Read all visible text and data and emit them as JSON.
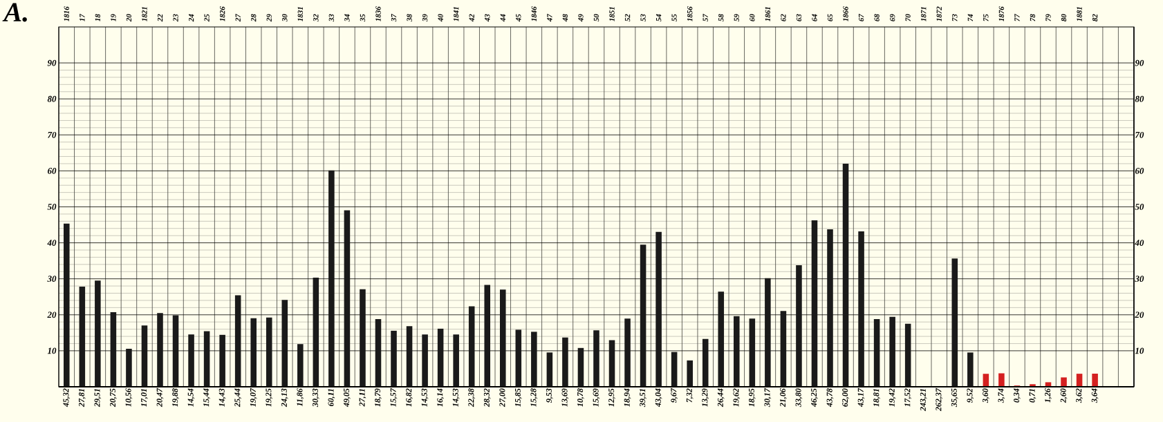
{
  "chart_data": {
    "type": "bar",
    "title": "A.",
    "categories": [
      "1816",
      "17",
      "18",
      "19",
      "20",
      "1821",
      "22",
      "23",
      "24",
      "25",
      "1826",
      "27",
      "28",
      "29",
      "30",
      "1831",
      "32",
      "33",
      "34",
      "35",
      "1836",
      "37",
      "38",
      "39",
      "40",
      "1841",
      "42",
      "43",
      "44",
      "45",
      "1846",
      "47",
      "48",
      "49",
      "50",
      "1851",
      "52",
      "53",
      "54",
      "55",
      "1856",
      "57",
      "58",
      "59",
      "60",
      "1861",
      "62",
      "63",
      "64",
      "65",
      "1866",
      "67",
      "68",
      "69",
      "70",
      "1871",
      "1872",
      "73",
      "74",
      "75",
      "1876",
      "77",
      "78",
      "79",
      "80",
      "1881",
      "82"
    ],
    "values": [
      45.32,
      27.81,
      29.51,
      20.75,
      10.56,
      17.01,
      20.47,
      19.88,
      14.54,
      15.44,
      14.43,
      25.44,
      19.07,
      19.25,
      24.13,
      11.86,
      30.33,
      60.11,
      49.05,
      27.11,
      18.79,
      15.57,
      16.82,
      14.53,
      16.14,
      14.53,
      22.38,
      28.32,
      27.0,
      15.85,
      15.28,
      9.53,
      13.69,
      10.78,
      15.69,
      12.95,
      18.94,
      39.51,
      43.04,
      9.67,
      7.32,
      13.29,
      26.44,
      19.62,
      18.95,
      30.17,
      21.06,
      33.8,
      46.25,
      43.78,
      62.0,
      43.17,
      18.81,
      19.42,
      17.52,
      null,
      null,
      35.65,
      9.52,
      3.6,
      3.74,
      0.34,
      0.71,
      1.26,
      2.6,
      3.62,
      3.64
    ],
    "value_labels": [
      "45,32",
      "27,81",
      "29,51",
      "20,75",
      "10,56",
      "17,01",
      "20,47",
      "19,88",
      "14,54",
      "15,44",
      "14,43",
      "25,44",
      "19,07",
      "19,25",
      "24,13",
      "11,86",
      "30,33",
      "60,11",
      "49,05",
      "27,11",
      "18,79",
      "15,57",
      "16,82",
      "14,53",
      "16,14",
      "14,53",
      "22,38",
      "28,32",
      "27,00",
      "15,85",
      "15,28",
      "9,53",
      "13,69",
      "10,78",
      "15,69",
      "12,95",
      "18,94",
      "39,51",
      "43,04",
      "9,67",
      "7,32",
      "13,29",
      "26,44",
      "19,62",
      "18,95",
      "30,17",
      "21,06",
      "33,80",
      "46,25",
      "43,78",
      "62,00",
      "43,17",
      "18,81",
      "19,42",
      "17,52",
      "243,21",
      "262,37",
      "35,65",
      "9,52",
      "3,60",
      "3,74",
      "0,34",
      "0,71",
      "1,26",
      "2,60",
      "3,62",
      "3,64"
    ],
    "colors": [
      "#1a1a1a",
      "#1a1a1a",
      "#1a1a1a",
      "#1a1a1a",
      "#1a1a1a",
      "#1a1a1a",
      "#1a1a1a",
      "#1a1a1a",
      "#1a1a1a",
      "#1a1a1a",
      "#1a1a1a",
      "#1a1a1a",
      "#1a1a1a",
      "#1a1a1a",
      "#1a1a1a",
      "#1a1a1a",
      "#1a1a1a",
      "#1a1a1a",
      "#1a1a1a",
      "#1a1a1a",
      "#1a1a1a",
      "#1a1a1a",
      "#1a1a1a",
      "#1a1a1a",
      "#1a1a1a",
      "#1a1a1a",
      "#1a1a1a",
      "#1a1a1a",
      "#1a1a1a",
      "#1a1a1a",
      "#1a1a1a",
      "#1a1a1a",
      "#1a1a1a",
      "#1a1a1a",
      "#1a1a1a",
      "#1a1a1a",
      "#1a1a1a",
      "#1a1a1a",
      "#1a1a1a",
      "#1a1a1a",
      "#1a1a1a",
      "#1a1a1a",
      "#1a1a1a",
      "#1a1a1a",
      "#1a1a1a",
      "#1a1a1a",
      "#1a1a1a",
      "#1a1a1a",
      "#1a1a1a",
      "#1a1a1a",
      "#1a1a1a",
      "#1a1a1a",
      "#1a1a1a",
      "#1a1a1a",
      "#1a1a1a",
      "#1a1a1a",
      "#1a1a1a",
      "#1a1a1a",
      "#1a1a1a",
      "#d42020",
      "#d42020",
      "#d42020",
      "#d42020",
      "#d42020",
      "#d42020",
      "#d42020",
      "#d42020"
    ],
    "ylim": [
      0,
      100
    ],
    "yticks": [
      10,
      20,
      30,
      40,
      50,
      60,
      70,
      80,
      90
    ],
    "y2lim": [
      0,
      100
    ],
    "y2ticks": [
      10,
      20,
      30,
      40,
      50,
      60,
      70,
      80,
      90
    ],
    "grid": true
  }
}
